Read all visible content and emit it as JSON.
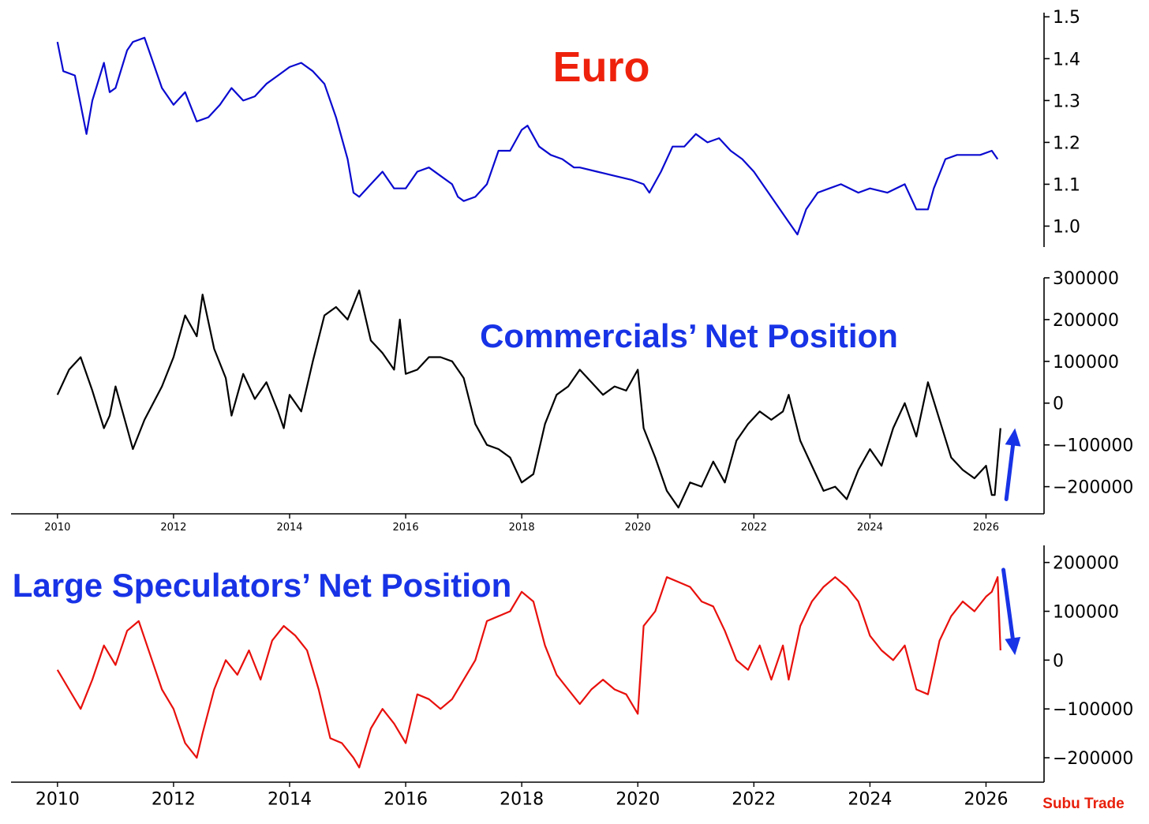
{
  "brand": {
    "label": "Subu Trade",
    "color": "#e8200c"
  },
  "chart_data": [
    {
      "type": "line",
      "title": "Euro",
      "title_color": "#ee220c",
      "xlabel": "",
      "ylabel": "",
      "xlim": [
        2009.2,
        2027.0
      ],
      "ylim": [
        0.95,
        1.51
      ],
      "yticks": [
        1.0,
        1.1,
        1.2,
        1.3,
        1.4,
        1.5
      ],
      "ytick_labels": [
        "1.0",
        "1.1",
        "1.2",
        "1.3",
        "1.4",
        "1.5"
      ],
      "grid": false,
      "series": [
        {
          "color": "#0a0ad0",
          "x": [
            2010.0,
            2010.1,
            2010.3,
            2010.5,
            2010.6,
            2010.8,
            2010.9,
            2011.0,
            2011.2,
            2011.3,
            2011.5,
            2011.6,
            2011.8,
            2012.0,
            2012.2,
            2012.4,
            2012.6,
            2012.8,
            2013.0,
            2013.2,
            2013.4,
            2013.6,
            2013.8,
            2014.0,
            2014.2,
            2014.4,
            2014.6,
            2014.8,
            2015.0,
            2015.1,
            2015.2,
            2015.4,
            2015.6,
            2015.8,
            2016.0,
            2016.2,
            2016.4,
            2016.6,
            2016.8,
            2016.9,
            2017.0,
            2017.2,
            2017.4,
            2017.6,
            2017.8,
            2018.0,
            2018.1,
            2018.3,
            2018.5,
            2018.7,
            2018.9,
            2019.0,
            2019.3,
            2019.6,
            2019.9,
            2020.1,
            2020.2,
            2020.4,
            2020.6,
            2020.8,
            2021.0,
            2021.2,
            2021.4,
            2021.6,
            2021.8,
            2022.0,
            2022.2,
            2022.4,
            2022.6,
            2022.75,
            2022.9,
            2023.1,
            2023.3,
            2023.5,
            2023.8,
            2024.0,
            2024.3,
            2024.6,
            2024.8,
            2025.0,
            2025.1,
            2025.3,
            2025.5,
            2025.7,
            2025.9,
            2026.1,
            2026.2
          ],
          "y": [
            1.44,
            1.37,
            1.36,
            1.22,
            1.3,
            1.39,
            1.32,
            1.33,
            1.42,
            1.44,
            1.45,
            1.41,
            1.33,
            1.29,
            1.32,
            1.25,
            1.26,
            1.29,
            1.33,
            1.3,
            1.31,
            1.34,
            1.36,
            1.38,
            1.39,
            1.37,
            1.34,
            1.26,
            1.16,
            1.08,
            1.07,
            1.1,
            1.13,
            1.09,
            1.09,
            1.13,
            1.14,
            1.12,
            1.1,
            1.07,
            1.06,
            1.07,
            1.1,
            1.18,
            1.18,
            1.23,
            1.24,
            1.19,
            1.17,
            1.16,
            1.14,
            1.14,
            1.13,
            1.12,
            1.11,
            1.1,
            1.08,
            1.13,
            1.19,
            1.19,
            1.22,
            1.2,
            1.21,
            1.18,
            1.16,
            1.13,
            1.09,
            1.05,
            1.01,
            0.98,
            1.04,
            1.08,
            1.09,
            1.1,
            1.08,
            1.09,
            1.08,
            1.1,
            1.04,
            1.04,
            1.09,
            1.16,
            1.17,
            1.17,
            1.17,
            1.18,
            1.16
          ]
        }
      ]
    },
    {
      "type": "line",
      "title": "Commercials’ Net Position",
      "title_color": "#1833e6",
      "xlabel": "",
      "ylabel": "",
      "xlim": [
        2009.2,
        2027.0
      ],
      "ylim": [
        -265000,
        300000
      ],
      "yticks": [
        -200000,
        -100000,
        0,
        100000,
        200000,
        300000
      ],
      "ytick_labels": [
        "−200000",
        "−100000",
        "0",
        "100000",
        "200000",
        "300000"
      ],
      "xticks": [
        2010,
        2012,
        2014,
        2016,
        2018,
        2020,
        2022,
        2024,
        2026
      ],
      "xtick_labels": [
        "2010",
        "2012",
        "2014",
        "2016",
        "2018",
        "2020",
        "2022",
        "2024",
        "2026"
      ],
      "grid": false,
      "annotations": [
        {
          "type": "arrow",
          "direction": "up",
          "color": "#1833e6",
          "x_start": 2026.35,
          "y_start": -230000,
          "x_end": 2026.5,
          "y_end": -60000
        }
      ],
      "series": [
        {
          "color": "#000000",
          "x": [
            2010.0,
            2010.2,
            2010.4,
            2010.6,
            2010.8,
            2010.9,
            2011.0,
            2011.2,
            2011.3,
            2011.5,
            2011.8,
            2012.0,
            2012.2,
            2012.4,
            2012.5,
            2012.7,
            2012.9,
            2013.0,
            2013.2,
            2013.4,
            2013.6,
            2013.8,
            2013.9,
            2014.0,
            2014.2,
            2014.4,
            2014.6,
            2014.8,
            2015.0,
            2015.2,
            2015.4,
            2015.6,
            2015.8,
            2015.9,
            2016.0,
            2016.2,
            2016.4,
            2016.6,
            2016.8,
            2017.0,
            2017.2,
            2017.4,
            2017.6,
            2017.8,
            2018.0,
            2018.2,
            2018.4,
            2018.6,
            2018.8,
            2019.0,
            2019.2,
            2019.4,
            2019.6,
            2019.8,
            2020.0,
            2020.1,
            2020.3,
            2020.5,
            2020.7,
            2020.9,
            2021.1,
            2021.3,
            2021.5,
            2021.7,
            2021.9,
            2022.1,
            2022.3,
            2022.5,
            2022.6,
            2022.8,
            2023.0,
            2023.2,
            2023.4,
            2023.6,
            2023.8,
            2024.0,
            2024.2,
            2024.4,
            2024.6,
            2024.8,
            2025.0,
            2025.2,
            2025.4,
            2025.6,
            2025.8,
            2026.0,
            2026.1,
            2026.15,
            2026.25
          ],
          "y": [
            20000,
            80000,
            110000,
            30000,
            -60000,
            -30000,
            40000,
            -60000,
            -110000,
            -40000,
            40000,
            110000,
            210000,
            160000,
            260000,
            130000,
            60000,
            -30000,
            70000,
            10000,
            50000,
            -20000,
            -60000,
            20000,
            -20000,
            100000,
            210000,
            230000,
            200000,
            270000,
            150000,
            120000,
            80000,
            200000,
            70000,
            80000,
            110000,
            110000,
            100000,
            60000,
            -50000,
            -100000,
            -110000,
            -130000,
            -190000,
            -170000,
            -50000,
            20000,
            40000,
            80000,
            50000,
            20000,
            40000,
            30000,
            80000,
            -60000,
            -130000,
            -210000,
            -250000,
            -190000,
            -200000,
            -140000,
            -190000,
            -90000,
            -50000,
            -20000,
            -40000,
            -20000,
            20000,
            -90000,
            -150000,
            -210000,
            -200000,
            -230000,
            -160000,
            -110000,
            -150000,
            -60000,
            0,
            -80000,
            50000,
            -40000,
            -130000,
            -160000,
            -180000,
            -150000,
            -220000,
            -220000,
            -60000
          ]
        }
      ]
    },
    {
      "type": "line",
      "title": "Large Speculators’ Net Position",
      "title_color": "#1833e6",
      "xlabel": "",
      "ylabel": "",
      "xlim": [
        2009.2,
        2027.0
      ],
      "ylim": [
        -250000,
        235000
      ],
      "yticks": [
        -200000,
        -100000,
        0,
        100000,
        200000
      ],
      "ytick_labels": [
        "−200000",
        "−100000",
        "0",
        "100000",
        "200000"
      ],
      "xticks": [
        2010,
        2012,
        2014,
        2016,
        2018,
        2020,
        2022,
        2024,
        2026
      ],
      "xtick_labels": [
        "2010",
        "2012",
        "2014",
        "2016",
        "2018",
        "2020",
        "2022",
        "2024",
        "2026"
      ],
      "grid": false,
      "annotations": [
        {
          "type": "arrow",
          "direction": "down",
          "color": "#1833e6",
          "x_start": 2026.3,
          "y_start": 185000,
          "x_end": 2026.5,
          "y_end": 10000
        }
      ],
      "series": [
        {
          "color": "#e8100c",
          "x": [
            2010.0,
            2010.2,
            2010.4,
            2010.6,
            2010.8,
            2011.0,
            2011.2,
            2011.4,
            2011.6,
            2011.8,
            2012.0,
            2012.2,
            2012.4,
            2012.5,
            2012.7,
            2012.9,
            2013.1,
            2013.3,
            2013.5,
            2013.7,
            2013.9,
            2014.1,
            2014.3,
            2014.5,
            2014.7,
            2014.9,
            2015.1,
            2015.2,
            2015.4,
            2015.6,
            2015.8,
            2016.0,
            2016.2,
            2016.4,
            2016.6,
            2016.8,
            2017.0,
            2017.2,
            2017.4,
            2017.6,
            2017.8,
            2018.0,
            2018.2,
            2018.4,
            2018.6,
            2018.8,
            2019.0,
            2019.2,
            2019.4,
            2019.6,
            2019.8,
            2020.0,
            2020.1,
            2020.3,
            2020.5,
            2020.7,
            2020.9,
            2021.1,
            2021.3,
            2021.5,
            2021.7,
            2021.9,
            2022.1,
            2022.3,
            2022.5,
            2022.6,
            2022.8,
            2023.0,
            2023.2,
            2023.4,
            2023.6,
            2023.8,
            2024.0,
            2024.2,
            2024.4,
            2024.6,
            2024.8,
            2025.0,
            2025.2,
            2025.4,
            2025.6,
            2025.8,
            2026.0,
            2026.1,
            2026.2,
            2026.25
          ],
          "y": [
            -20000,
            -60000,
            -100000,
            -40000,
            30000,
            -10000,
            60000,
            80000,
            10000,
            -60000,
            -100000,
            -170000,
            -200000,
            -150000,
            -60000,
            0,
            -30000,
            20000,
            -40000,
            40000,
            70000,
            50000,
            20000,
            -60000,
            -160000,
            -170000,
            -200000,
            -220000,
            -140000,
            -100000,
            -130000,
            -170000,
            -70000,
            -80000,
            -100000,
            -80000,
            -40000,
            0,
            80000,
            90000,
            100000,
            140000,
            120000,
            30000,
            -30000,
            -60000,
            -90000,
            -60000,
            -40000,
            -60000,
            -70000,
            -110000,
            70000,
            100000,
            170000,
            160000,
            150000,
            120000,
            110000,
            60000,
            0,
            -20000,
            30000,
            -40000,
            30000,
            -40000,
            70000,
            120000,
            150000,
            170000,
            150000,
            120000,
            50000,
            20000,
            0,
            30000,
            -60000,
            -70000,
            40000,
            90000,
            120000,
            100000,
            130000,
            140000,
            170000,
            20000
          ]
        }
      ]
    }
  ]
}
